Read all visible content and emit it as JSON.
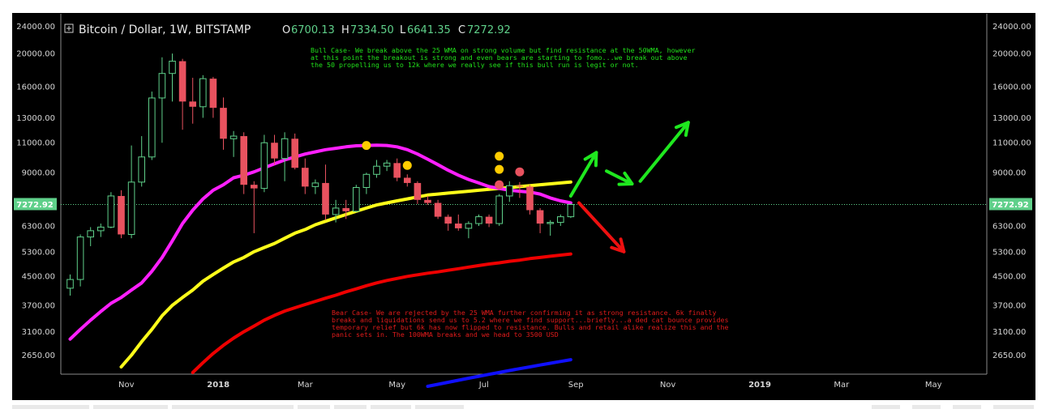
{
  "header": {
    "symbol": "Bitcoin / Dollar, 1W, BITSTAMP",
    "ohlc": [
      {
        "k": "O",
        "v": "6700.13"
      },
      {
        "k": "H",
        "v": "7334.50"
      },
      {
        "k": "L",
        "v": "6641.35"
      },
      {
        "k": "C",
        "v": "7272.92"
      }
    ]
  },
  "annotations": {
    "bull": [
      "Bull Case- We break above the 25 WMA on strong volume but find resistance at the 50WMA, however",
      "at this point the breakout is strong and even bears are starting to fomo...we break out above",
      "the 50 propelling us to 12k where we really see if this bull run is legit or not."
    ],
    "bear": [
      "Bear Case- We are rejected by the 25 WMA further confirming it as strong resistance. 6k finally",
      "breaks and liquidations send us to 5.2 where we find support...briefly...a ded cat bounce provides",
      "temporary relief but 6k has now flipped to resistance. Bulls and retail alike realize this and the",
      "panic sets in. The 100WMA breaks and we head to 3500 USD"
    ]
  },
  "colors": {
    "background": "#000000",
    "up": "#5fd08a",
    "down": "#e8525f",
    "ma25": "#ff1fff",
    "ma50": "#ffff1a",
    "ma100": "#ee0000",
    "ma200": "#1010ff",
    "bull_arrow": "#1fe81f",
    "bear_arrow": "#ee1010",
    "dot_yellow": "#ffcc00",
    "dot_pink": "#e8525f"
  },
  "chart_data": {
    "type": "candlestick",
    "title": "Bitcoin / Dollar, 1W, BITSTAMP",
    "y_scale": "log",
    "y_ticks": [
      2650,
      3100,
      3700,
      4500,
      5300,
      6300,
      7272.92,
      9000,
      11000,
      13000,
      16000,
      20000,
      24000
    ],
    "y_tick_labels": [
      "2650.00",
      "3100.00",
      "3700.00",
      "4500.00",
      "5300.00",
      "6300.00",
      "7272.92",
      "9000.00",
      "11000.00",
      "13000.00",
      "16000.00",
      "20000.00",
      "24000.00"
    ],
    "last_price": 7272.92,
    "x_ticks": [
      {
        "label": "Nov",
        "i": 5.5,
        "bold": false
      },
      {
        "label": "2018",
        "i": 14.5,
        "bold": true
      },
      {
        "label": "Mar",
        "i": 23,
        "bold": false
      },
      {
        "label": "May",
        "i": 32,
        "bold": false
      },
      {
        "label": "Jul",
        "i": 40.5,
        "bold": false
      },
      {
        "label": "Sep",
        "i": 49.5,
        "bold": false
      },
      {
        "label": "Nov",
        "i": 58.5,
        "bold": false
      },
      {
        "label": "2019",
        "i": 67.5,
        "bold": true
      },
      {
        "label": "Mar",
        "i": 75.5,
        "bold": false
      },
      {
        "label": "May",
        "i": 84.5,
        "bold": false
      }
    ],
    "candles": [
      [
        4150,
        4550,
        3950,
        4400
      ],
      [
        4400,
        5950,
        4200,
        5850
      ],
      [
        5850,
        6250,
        5500,
        6100
      ],
      [
        6100,
        6400,
        5850,
        6250
      ],
      [
        6250,
        7900,
        6200,
        7700
      ],
      [
        7700,
        8000,
        5800,
        5950
      ],
      [
        5950,
        10800,
        5800,
        8450
      ],
      [
        8450,
        11500,
        8200,
        10000
      ],
      [
        10000,
        15500,
        9800,
        14850
      ],
      [
        14850,
        19500,
        11000,
        17500
      ],
      [
        17500,
        20000,
        14500,
        19000
      ],
      [
        19000,
        19300,
        12000,
        14500
      ],
      [
        14500,
        17000,
        12500,
        14000
      ],
      [
        14000,
        17300,
        13000,
        16900
      ],
      [
        16900,
        17100,
        13000,
        13900
      ],
      [
        13900,
        14900,
        10500,
        11300
      ],
      [
        11300,
        11900,
        10000,
        11500
      ],
      [
        11500,
        11800,
        7800,
        8300
      ],
      [
        8300,
        8500,
        6000,
        8100
      ],
      [
        8100,
        11600,
        7900,
        11000
      ],
      [
        11000,
        11600,
        9500,
        9900
      ],
      [
        9900,
        11800,
        8500,
        11300
      ],
      [
        11300,
        11700,
        9200,
        9300
      ],
      [
        9300,
        9900,
        7800,
        8200
      ],
      [
        8200,
        8600,
        7800,
        8400
      ],
      [
        8400,
        9500,
        6550,
        6800
      ],
      [
        6800,
        7500,
        6450,
        7100
      ],
      [
        7100,
        7500,
        6600,
        6950
      ],
      [
        6950,
        8300,
        6900,
        8150
      ],
      [
        8150,
        9000,
        7800,
        8900
      ],
      [
        8900,
        9800,
        8700,
        9400
      ],
      [
        9400,
        9800,
        9100,
        9600
      ],
      [
        9600,
        9900,
        8500,
        8700
      ],
      [
        8700,
        8900,
        8200,
        8400
      ],
      [
        8400,
        8500,
        7300,
        7500
      ],
      [
        7500,
        7700,
        7250,
        7350
      ],
      [
        7350,
        7500,
        6600,
        6700
      ],
      [
        6700,
        6800,
        6100,
        6400
      ],
      [
        6400,
        6800,
        6100,
        6200
      ],
      [
        6200,
        6500,
        5800,
        6400
      ],
      [
        6400,
        6800,
        6300,
        6700
      ],
      [
        6700,
        6800,
        6250,
        6400
      ],
      [
        6400,
        7800,
        6300,
        7700
      ],
      [
        7700,
        8500,
        7400,
        8250
      ],
      [
        8250,
        8450,
        7600,
        8200
      ],
      [
        8200,
        8300,
        6800,
        7000
      ],
      [
        7000,
        7100,
        6000,
        6400
      ],
      [
        6400,
        6550,
        5900,
        6450
      ],
      [
        6450,
        6800,
        6300,
        6700
      ],
      [
        6700.13,
        7334.5,
        6641.35,
        7272.92
      ]
    ],
    "ma25": [
      2950,
      3150,
      3350,
      3550,
      3750,
      3900,
      4100,
      4300,
      4650,
      5100,
      5700,
      6400,
      7000,
      7550,
      8000,
      8300,
      8700,
      8850,
      9050,
      9300,
      9550,
      9800,
      10000,
      10200,
      10350,
      10500,
      10600,
      10700,
      10780,
      10800,
      10820,
      10800,
      10700,
      10500,
      10200,
      9850,
      9500,
      9150,
      8850,
      8600,
      8400,
      8200,
      8100,
      8000,
      7950,
      7900,
      7800,
      7600,
      7450,
      7350
    ],
    "ma50": [
      null,
      null,
      null,
      null,
      null,
      2450,
      2650,
      2900,
      3150,
      3450,
      3700,
      3900,
      4100,
      4350,
      4550,
      4750,
      4950,
      5100,
      5300,
      5450,
      5600,
      5800,
      6000,
      6150,
      6350,
      6500,
      6650,
      6800,
      6950,
      7100,
      7250,
      7350,
      7450,
      7550,
      7650,
      7750,
      7800,
      7850,
      7900,
      7950,
      8000,
      8050,
      8100,
      8150,
      8200,
      8250,
      8300,
      8350,
      8400,
      8450
    ],
    "ma100": [
      null,
      null,
      null,
      null,
      null,
      null,
      null,
      null,
      null,
      null,
      null,
      null,
      2360,
      2520,
      2680,
      2830,
      2970,
      3100,
      3220,
      3350,
      3460,
      3560,
      3640,
      3720,
      3800,
      3880,
      3960,
      4050,
      4130,
      4220,
      4300,
      4370,
      4430,
      4490,
      4540,
      4590,
      4630,
      4680,
      4730,
      4780,
      4830,
      4880,
      4920,
      4970,
      5010,
      5060,
      5100,
      5140,
      5180,
      5220
    ],
    "ma200": [
      null,
      null,
      null,
      null,
      null,
      null,
      null,
      null,
      null,
      null,
      null,
      null,
      null,
      null,
      null,
      null,
      null,
      null,
      null,
      null,
      null,
      null,
      null,
      null,
      null,
      null,
      null,
      null,
      null,
      null,
      null,
      null,
      null,
      null,
      null,
      2150,
      2180,
      2210,
      2240,
      2270,
      2300,
      2330,
      2360,
      2390,
      2420,
      2450,
      2480,
      2510,
      2540,
      2570
    ],
    "dots": [
      {
        "i": 29,
        "v": 10800,
        "color": "yellow"
      },
      {
        "i": 33,
        "v": 9450,
        "color": "yellow"
      },
      {
        "i": 42,
        "v": 10050,
        "color": "yellow"
      },
      {
        "i": 42,
        "v": 9200,
        "color": "yellow"
      },
      {
        "i": 42,
        "v": 8300,
        "color": "pink"
      },
      {
        "i": 44,
        "v": 9050,
        "color": "pink"
      }
    ],
    "arrows": {
      "bull": [
        [
          [
            49,
            7700
          ],
          [
            51.5,
            10300
          ]
        ],
        [
          [
            52.5,
            9100
          ],
          [
            55,
            8350
          ]
        ],
        [
          [
            55.8,
            8500
          ],
          [
            60.5,
            12600
          ]
        ]
      ],
      "bear": [
        [
          [
            49.8,
            7350
          ],
          [
            54.2,
            5300
          ]
        ]
      ]
    }
  }
}
